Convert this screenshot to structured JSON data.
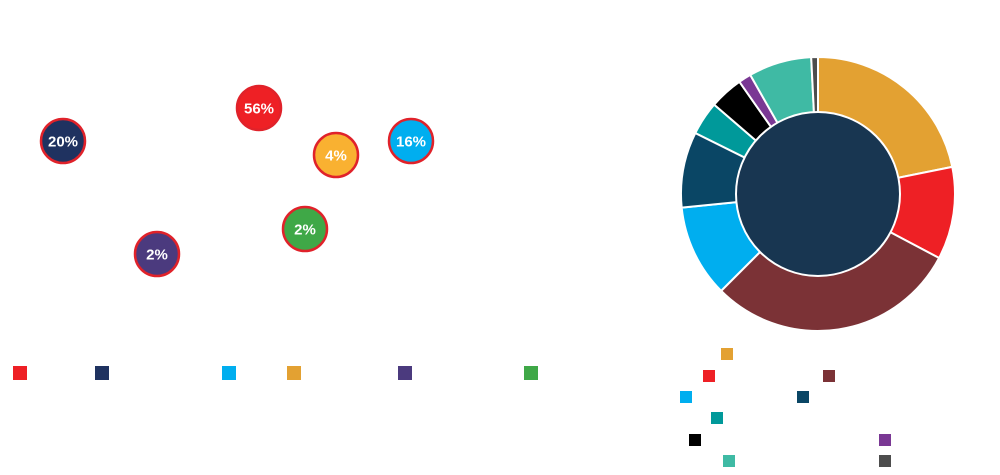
{
  "chart_data": [
    {
      "type": "bubble",
      "points": [
        {
          "label": "56%",
          "value": 56,
          "color": "#ee2025"
        },
        {
          "label": "20%",
          "value": 20,
          "color": "#1f3260"
        },
        {
          "label": "4%",
          "value": 4,
          "color": "#f9b131"
        },
        {
          "label": "16%",
          "value": 16,
          "color": "#00aeef"
        },
        {
          "label": "2%",
          "value": 2,
          "color": "#3fa847"
        },
        {
          "label": "2%",
          "value": 2,
          "color": "#4b3a7e"
        }
      ],
      "ring_color": "#e0222a",
      "legend_colors": [
        "#ee2025",
        "#1f3260",
        "#00aeef",
        "#e3a132",
        "#4b3a7e",
        "#3fa847"
      ]
    },
    {
      "type": "pie",
      "donut": true,
      "center_color": "#183651",
      "slices": [
        {
          "value": 22,
          "color": "#e3a132"
        },
        {
          "value": 11,
          "color": "#ee2025"
        },
        {
          "value": 30,
          "color": "#7b3236"
        },
        {
          "value": 11,
          "color": "#00aeef"
        },
        {
          "value": 9,
          "color": "#0a4665"
        },
        {
          "value": 4,
          "color": "#00999a"
        },
        {
          "value": 4,
          "color": "#000000"
        },
        {
          "value": 1.5,
          "color": "#7a3894"
        },
        {
          "value": 7.5,
          "color": "#3fbaa4"
        },
        {
          "value": 0.8,
          "color": "#4d4d4d"
        }
      ],
      "legend_colors": [
        "#e3a132",
        "#ee2025",
        "#7b3236",
        "#00aeef",
        "#0a4665",
        "#00999a",
        "#000000",
        "#7a3894",
        "#3fbaa4",
        "#4d4d4d"
      ]
    }
  ]
}
